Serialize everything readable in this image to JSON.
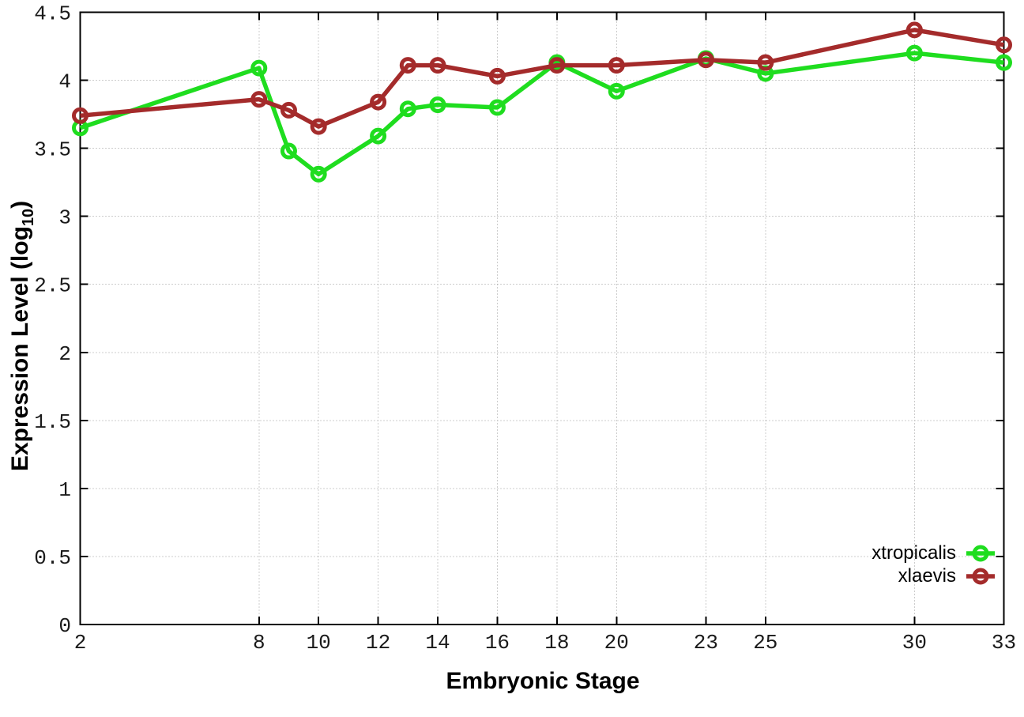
{
  "chart_data": {
    "type": "line",
    "title": "",
    "xlabel": "Embryonic Stage",
    "ylabel": "Expression Level (log10)",
    "ylabel_parts": {
      "pre": "Expression Level (log",
      "sub": "10",
      "post": ")"
    },
    "x": [
      2,
      8,
      9,
      10,
      12,
      13,
      14,
      16,
      18,
      20,
      23,
      25,
      30,
      33
    ],
    "xlim": [
      2,
      33
    ],
    "ylim": [
      0,
      4.5
    ],
    "x_tick_values": [
      2,
      8,
      10,
      12,
      14,
      16,
      18,
      20,
      23,
      25,
      30,
      33
    ],
    "x_tick_labels": [
      "2",
      "8",
      "10",
      "12",
      "14",
      "16",
      "18",
      "20",
      "23",
      "25",
      "30",
      "33"
    ],
    "y_tick_values": [
      0,
      0.5,
      1,
      1.5,
      2,
      2.5,
      3,
      3.5,
      4,
      4.5
    ],
    "y_tick_labels": [
      "0",
      "0.5",
      "1",
      "1.5",
      "2",
      "2.5",
      "3",
      "3.5",
      "4",
      "4.5"
    ],
    "grid": "dotted",
    "legend_position": "inside-bottom-right",
    "series": [
      {
        "name": "xtropicalis",
        "color": "#1fdd1f",
        "marker": "open-circle",
        "values": [
          3.65,
          4.09,
          3.48,
          3.31,
          3.59,
          3.79,
          3.82,
          3.8,
          4.13,
          3.92,
          4.16,
          4.05,
          4.2,
          4.13
        ]
      },
      {
        "name": "xlaevis",
        "color": "#a42b2b",
        "marker": "open-circle",
        "values": [
          3.74,
          3.86,
          3.78,
          3.66,
          3.84,
          4.11,
          4.11,
          4.03,
          4.11,
          4.11,
          4.15,
          4.13,
          4.37,
          4.26
        ]
      }
    ]
  },
  "style": {
    "background": "#ffffff",
    "axis_color": "#000000",
    "grid_color": "#999999",
    "tick_label_color": "#1a1a1a"
  }
}
